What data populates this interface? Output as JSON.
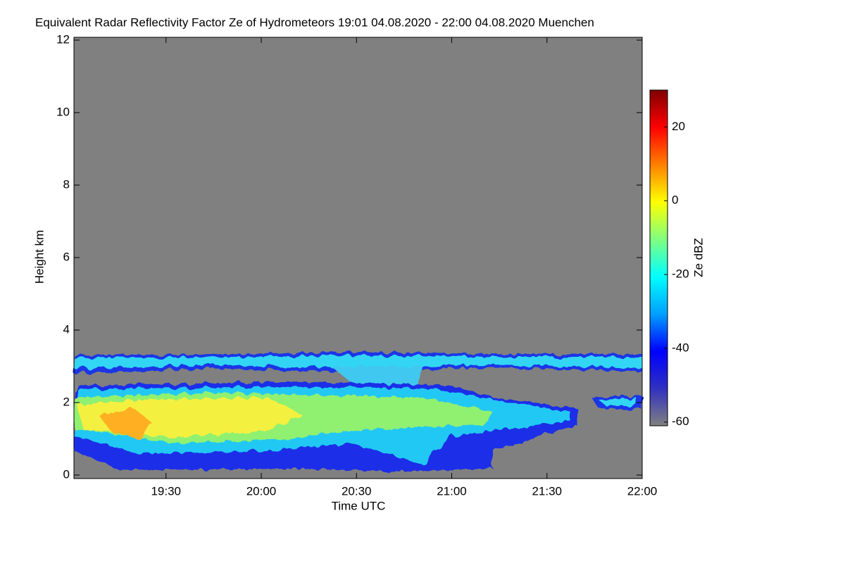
{
  "chart_data": {
    "type": "heatmap",
    "title": "Equivalent Radar Reflectivity Factor Ze of Hydrometeors   19:01 04.08.2020 - 22:00 04.08.2020 Muenchen",
    "x_label": "Time UTC",
    "y_label": "Height km",
    "xlim": [
      1141,
      1320
    ],
    "xticks": [
      {
        "value": 1170,
        "label": "19:30"
      },
      {
        "value": 1200,
        "label": "20:00"
      },
      {
        "value": 1230,
        "label": "20:30"
      },
      {
        "value": 1260,
        "label": "21:00"
      },
      {
        "value": 1290,
        "label": "21:30"
      },
      {
        "value": 1320,
        "label": "22:00"
      }
    ],
    "ylim": [
      0,
      12
    ],
    "yticks": [
      0,
      2,
      4,
      6,
      8,
      10,
      12
    ],
    "background_color": "#808080",
    "colorbar": {
      "label": "Ze dBZ",
      "lim": [
        -61,
        30
      ],
      "ticks": [
        -60,
        -40,
        -20,
        0,
        20
      ],
      "colormap": [
        "#808080",
        "#3030c0",
        "#0000ff",
        "#00a0ff",
        "#00ffff",
        "#80ff80",
        "#ffff00",
        "#ff8000",
        "#ff0000",
        "#800000"
      ]
    }
  }
}
